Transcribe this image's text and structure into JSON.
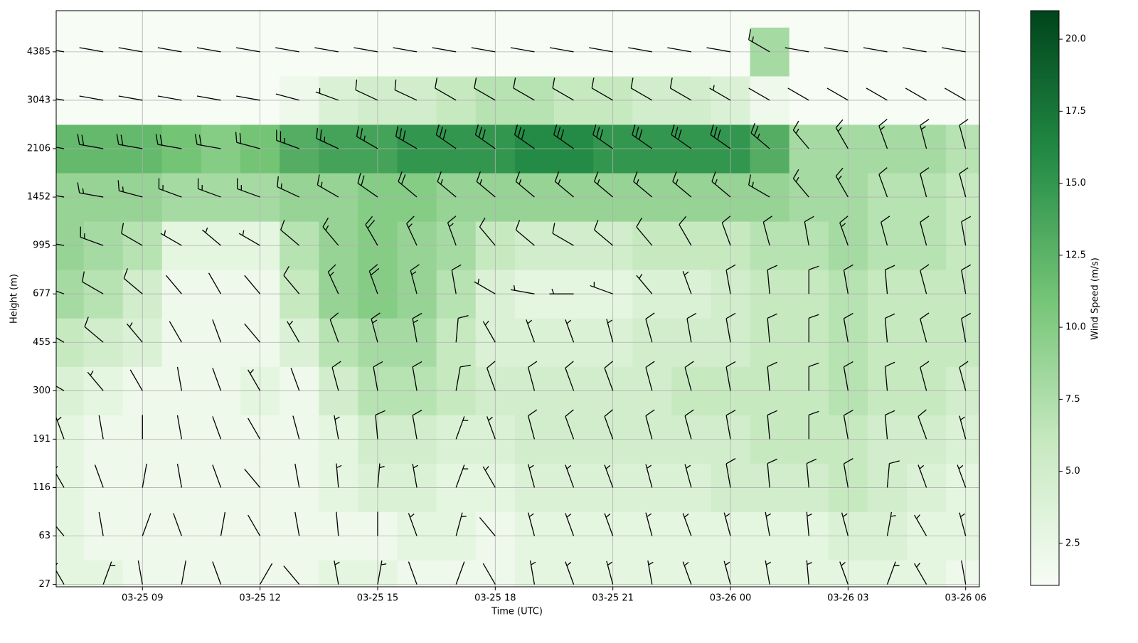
{
  "chart_data": {
    "type": "barb-heatmap",
    "xlabel": "Time (UTC)",
    "ylabel": "Height (m)",
    "colorbar_label": "Wind Speed (m/s)",
    "x": [
      7,
      8,
      9,
      10,
      11,
      12,
      13,
      14,
      15,
      16,
      17,
      18,
      19,
      20,
      21,
      22,
      23,
      24,
      25,
      26,
      27,
      28,
      29,
      30
    ],
    "xlim": [
      6.8,
      30.35
    ],
    "xticks": [
      {
        "value": 9,
        "label": "03-25 09"
      },
      {
        "value": 12,
        "label": "03-25 12"
      },
      {
        "value": 15,
        "label": "03-25 15"
      },
      {
        "value": 18,
        "label": "03-25 18"
      },
      {
        "value": 21,
        "label": "03-25 21"
      },
      {
        "value": 24,
        "label": "03-26 00"
      },
      {
        "value": 27,
        "label": "03-26 03"
      },
      {
        "value": 30,
        "label": "03-26 06"
      }
    ],
    "ylim": [
      -0.05,
      11.85
    ],
    "yticks": [
      {
        "value": 0,
        "label": "27"
      },
      {
        "value": 1,
        "label": "63"
      },
      {
        "value": 2,
        "label": "116"
      },
      {
        "value": 3,
        "label": "191"
      },
      {
        "value": 4,
        "label": "300"
      },
      {
        "value": 5,
        "label": "455"
      },
      {
        "value": 6,
        "label": "677"
      },
      {
        "value": 7,
        "label": "995"
      },
      {
        "value": 8,
        "label": "1452"
      },
      {
        "value": 9,
        "label": "2106"
      },
      {
        "value": 10,
        "label": "3043"
      },
      {
        "value": 11,
        "label": "4385"
      }
    ],
    "grid": true,
    "colormap": [
      "#f7fcf5",
      "#c7e9c0",
      "#74c476",
      "#238b45",
      "#00441b"
    ],
    "clim": [
      1.04,
      20.99
    ],
    "cticks": [
      {
        "value": 2.5,
        "label": "2.5"
      },
      {
        "value": 5,
        "label": "5.0"
      },
      {
        "value": 7.5,
        "label": "7.5"
      },
      {
        "value": 10,
        "label": "10.0"
      },
      {
        "value": 12.5,
        "label": "12.5"
      },
      {
        "value": 15,
        "label": "15.0"
      },
      {
        "value": 17.5,
        "label": "17.5"
      },
      {
        "value": 20,
        "label": "20.0"
      }
    ],
    "speed": [
      [
        3,
        3,
        2,
        2,
        2,
        2,
        2,
        3,
        3,
        2,
        2,
        2,
        3,
        3,
        3,
        3,
        3,
        3,
        3,
        3,
        3,
        3,
        3,
        2
      ],
      [
        3,
        2,
        2,
        2,
        2,
        2,
        2,
        2,
        2,
        3,
        3,
        2,
        3,
        3,
        3,
        3,
        3,
        3,
        3,
        3,
        4,
        4,
        3,
        3
      ],
      [
        3,
        2,
        2,
        2,
        2,
        2,
        2,
        3,
        4,
        4,
        3,
        3,
        4,
        4,
        4,
        4,
        4,
        5,
        5,
        5,
        6,
        5,
        4,
        3
      ],
      [
        3,
        2,
        2,
        2,
        2,
        2,
        2,
        3,
        5,
        5,
        4,
        4,
        5,
        5,
        5,
        5,
        5,
        5,
        6,
        6,
        6,
        5,
        5,
        4
      ],
      [
        4,
        3,
        2,
        2,
        2,
        3,
        2,
        5,
        7,
        7,
        6,
        5,
        5,
        5,
        5,
        5,
        6,
        6,
        6,
        6,
        7,
        6,
        6,
        5
      ],
      [
        6,
        5,
        4,
        2,
        2,
        2,
        4,
        7,
        8,
        8,
        6,
        4,
        4,
        4,
        4,
        5,
        5,
        5,
        6,
        6,
        7,
        6,
        6,
        6
      ],
      [
        8,
        7,
        5,
        2,
        2,
        2,
        6,
        9,
        10,
        9,
        7,
        4,
        3,
        3,
        3,
        4,
        4,
        5,
        6,
        6,
        7,
        6,
        6,
        6
      ],
      [
        9,
        8,
        7,
        3,
        3,
        3,
        7,
        9,
        10,
        9,
        8,
        6,
        5,
        5,
        5,
        6,
        6,
        6,
        7,
        7,
        8,
        7,
        7,
        6
      ],
      [
        9,
        9,
        9,
        8,
        8,
        8,
        9,
        9,
        10,
        10,
        9,
        9,
        9,
        9,
        9,
        9,
        9,
        9,
        9,
        8,
        8,
        7,
        7,
        6
      ],
      [
        12,
        12,
        12,
        11,
        10,
        11,
        13,
        14,
        14,
        15,
        15,
        15,
        16,
        16,
        15,
        15,
        15,
        15,
        13,
        8,
        8,
        8,
        8,
        7
      ],
      [
        1,
        1,
        1,
        1,
        1,
        1,
        2,
        4,
        5,
        5,
        6,
        7,
        7,
        6,
        6,
        5,
        5,
        4,
        2,
        1,
        1,
        1,
        1,
        1
      ],
      [
        1,
        1,
        1,
        1,
        1,
        1,
        1,
        1,
        1,
        1,
        1,
        1,
        1,
        1,
        1,
        1,
        1,
        1,
        8,
        1,
        1,
        1,
        1,
        1
      ]
    ],
    "direction": [
      [
        330,
        20,
        350,
        10,
        340,
        30,
        320,
        350,
        10,
        340,
        20,
        330,
        350,
        340,
        345,
        350,
        340,
        345,
        350,
        355,
        340,
        20,
        330,
        350
      ],
      [
        320,
        350,
        20,
        340,
        10,
        330,
        350,
        355,
        0,
        340,
        15,
        320,
        345,
        340,
        340,
        345,
        340,
        345,
        350,
        355,
        345,
        10,
        330,
        345
      ],
      [
        330,
        340,
        10,
        350,
        340,
        320,
        350,
        355,
        5,
        350,
        20,
        330,
        345,
        340,
        340,
        345,
        345,
        350,
        355,
        355,
        350,
        5,
        340,
        340
      ],
      [
        340,
        350,
        0,
        350,
        340,
        330,
        345,
        350,
        355,
        350,
        20,
        340,
        345,
        340,
        340,
        345,
        345,
        350,
        355,
        0,
        350,
        355,
        340,
        345
      ],
      [
        300,
        320,
        330,
        350,
        340,
        330,
        340,
        345,
        350,
        350,
        10,
        340,
        345,
        340,
        340,
        345,
        345,
        350,
        355,
        0,
        350,
        355,
        345,
        345
      ],
      [
        300,
        310,
        320,
        330,
        340,
        320,
        330,
        340,
        345,
        350,
        5,
        330,
        340,
        340,
        345,
        345,
        350,
        350,
        355,
        0,
        350,
        355,
        345,
        350
      ],
      [
        290,
        300,
        310,
        320,
        330,
        320,
        320,
        335,
        340,
        345,
        350,
        300,
        280,
        270,
        290,
        320,
        340,
        350,
        355,
        0,
        350,
        355,
        345,
        350
      ],
      [
        280,
        290,
        300,
        300,
        310,
        300,
        310,
        320,
        330,
        335,
        340,
        320,
        310,
        300,
        310,
        320,
        330,
        340,
        345,
        350,
        340,
        345,
        345,
        350
      ],
      [
        280,
        280,
        285,
        290,
        290,
        290,
        295,
        300,
        305,
        310,
        310,
        310,
        310,
        310,
        310,
        310,
        310,
        310,
        300,
        320,
        330,
        340,
        345,
        345
      ],
      [
        280,
        280,
        280,
        280,
        280,
        285,
        290,
        295,
        300,
        300,
        305,
        305,
        305,
        305,
        305,
        305,
        305,
        305,
        310,
        320,
        330,
        340,
        345,
        345
      ],
      [
        280,
        280,
        280,
        280,
        280,
        280,
        285,
        290,
        295,
        295,
        300,
        300,
        300,
        300,
        300,
        300,
        300,
        300,
        300,
        300,
        300,
        300,
        300,
        300
      ],
      [
        280,
        280,
        280,
        280,
        280,
        280,
        280,
        280,
        280,
        280,
        280,
        280,
        280,
        280,
        280,
        280,
        280,
        280,
        300,
        280,
        280,
        280,
        280,
        280
      ]
    ]
  }
}
